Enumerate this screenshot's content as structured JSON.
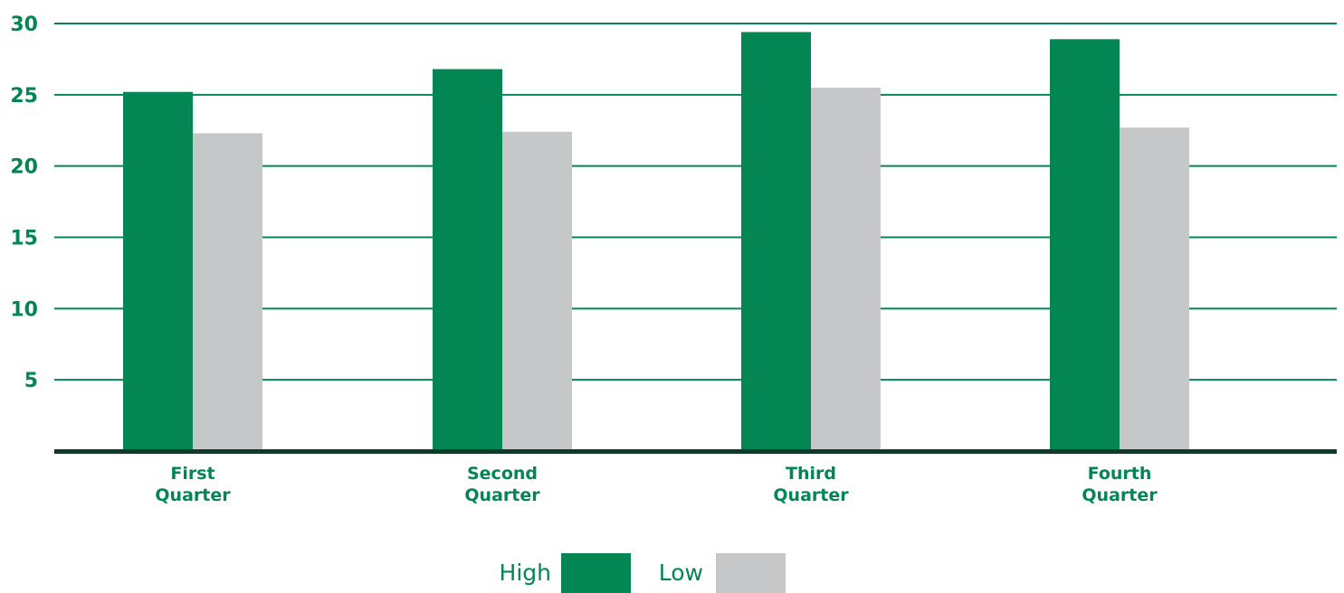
{
  "chart_data": {
    "type": "bar",
    "categories": [
      [
        "First",
        "Quarter"
      ],
      [
        "Second",
        "Quarter"
      ],
      [
        "Third",
        "Quarter"
      ],
      [
        "Fourth",
        "Quarter"
      ]
    ],
    "series": [
      {
        "name": "High",
        "values": [
          25.2,
          26.8,
          29.4,
          28.9
        ],
        "color": "#048554"
      },
      {
        "name": "Low",
        "values": [
          22.3,
          22.4,
          25.5,
          22.7
        ],
        "color": "#c6c7c8"
      }
    ],
    "yticks": [
      5,
      10,
      15,
      20,
      25,
      30
    ],
    "ylim": [
      0,
      30
    ],
    "grid": true,
    "legend_position": "bottom",
    "colors": {
      "label": "#048554",
      "grid": "#048554",
      "axis": "#0e3a2c"
    }
  }
}
